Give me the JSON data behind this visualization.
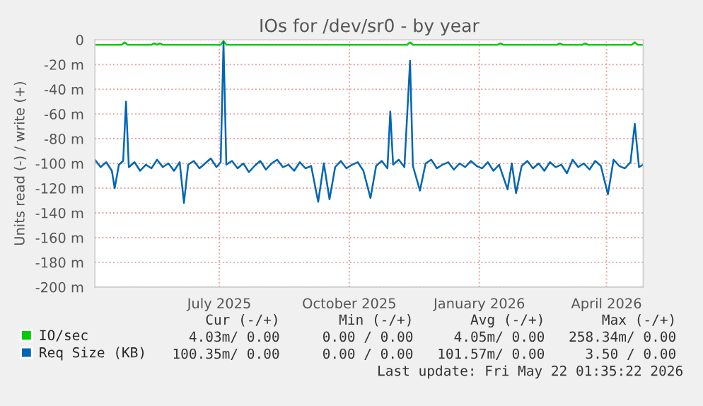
{
  "chart_data": {
    "type": "line",
    "title": "IOs for /dev/sr0 - by year",
    "ylabel": "Units read (-) / write (+)",
    "xlim": [
      "2025-04-04",
      "2026-04-27"
    ],
    "xticks": [
      {
        "value": "2025-07-01",
        "label": "July 2025"
      },
      {
        "value": "2025-10-01",
        "label": "October 2025"
      },
      {
        "value": "2026-01-01",
        "label": "January 2026"
      },
      {
        "value": "2026-04-01",
        "label": "April 2026"
      }
    ],
    "ylim": [
      -200,
      0
    ],
    "yticks": [
      {
        "value": -200,
        "label": "-200 m"
      },
      {
        "value": -180,
        "label": "-180 m"
      },
      {
        "value": -160,
        "label": "-160 m"
      },
      {
        "value": -140,
        "label": "-140 m"
      },
      {
        "value": -120,
        "label": "-120 m"
      },
      {
        "value": -100,
        "label": "-100 m"
      },
      {
        "value": -80,
        "label": "-80 m"
      },
      {
        "value": -60,
        "label": "-60 m"
      },
      {
        "value": -40,
        "label": "-40 m"
      },
      {
        "value": -20,
        "label": "-20 m"
      },
      {
        "value": 0,
        "label": "0"
      }
    ],
    "grid": true,
    "legend": "bottom left",
    "marker": "none",
    "line_style": "solid",
    "series": [
      {
        "name": "IO/sec",
        "color": "#00cc00",
        "x": [
          "2025-04-04",
          "2025-04-23",
          "2025-04-25",
          "2025-04-27",
          "2025-05-14",
          "2025-05-16",
          "2025-05-18",
          "2025-05-20",
          "2025-05-22",
          "2025-07-02",
          "2025-07-04",
          "2025-07-06",
          "2025-11-11",
          "2025-11-13",
          "2025-11-15",
          "2026-01-14",
          "2026-01-16",
          "2026-01-18",
          "2026-02-25",
          "2026-02-27",
          "2026-03-01",
          "2026-03-15",
          "2026-03-17",
          "2026-03-19",
          "2026-04-19",
          "2026-04-21",
          "2026-04-23",
          "2026-04-27"
        ],
        "values": [
          -4,
          -4,
          -2,
          -4,
          -4,
          -3,
          -4,
          -3,
          -4,
          -4,
          -1,
          -4,
          -4,
          -2,
          -4,
          -4,
          -3,
          -4,
          -4,
          -3,
          -4,
          -4,
          -3,
          -4,
          -4,
          -2,
          -4,
          -4
        ]
      },
      {
        "name": "Req Size (KB)",
        "color": "#0066b3",
        "x": [
          "2025-04-04",
          "2025-04-08",
          "2025-04-12",
          "2025-04-16",
          "2025-04-18",
          "2025-04-21",
          "2025-04-24",
          "2025-04-26",
          "2025-04-28",
          "2025-05-02",
          "2025-05-06",
          "2025-05-10",
          "2025-05-14",
          "2025-05-18",
          "2025-05-22",
          "2025-05-26",
          "2025-05-30",
          "2025-06-03",
          "2025-06-06",
          "2025-06-09",
          "2025-06-13",
          "2025-06-17",
          "2025-06-21",
          "2025-06-25",
          "2025-06-29",
          "2025-07-02",
          "2025-07-04",
          "2025-07-06",
          "2025-07-10",
          "2025-07-14",
          "2025-07-18",
          "2025-07-22",
          "2025-07-26",
          "2025-07-30",
          "2025-08-03",
          "2025-08-07",
          "2025-08-11",
          "2025-08-15",
          "2025-08-19",
          "2025-08-23",
          "2025-08-27",
          "2025-08-31",
          "2025-09-04",
          "2025-09-09",
          "2025-09-13",
          "2025-09-17",
          "2025-09-21",
          "2025-09-25",
          "2025-09-29",
          "2025-10-03",
          "2025-10-07",
          "2025-10-11",
          "2025-10-16",
          "2025-10-20",
          "2025-10-24",
          "2025-10-28",
          "2025-10-30",
          "2025-11-01",
          "2025-11-05",
          "2025-11-09",
          "2025-11-13",
          "2025-11-15",
          "2025-11-20",
          "2025-11-24",
          "2025-11-28",
          "2025-12-02",
          "2025-12-06",
          "2025-12-10",
          "2025-12-14",
          "2025-12-18",
          "2025-12-22",
          "2025-12-26",
          "2025-12-30",
          "2026-01-03",
          "2026-01-07",
          "2026-01-11",
          "2026-01-15",
          "2026-01-21",
          "2026-01-24",
          "2026-01-27",
          "2026-01-31",
          "2026-02-04",
          "2026-02-08",
          "2026-02-12",
          "2026-02-16",
          "2026-02-20",
          "2026-02-24",
          "2026-02-28",
          "2026-03-04",
          "2026-03-08",
          "2026-03-12",
          "2026-03-16",
          "2026-03-20",
          "2026-03-24",
          "2026-03-28",
          "2026-04-02",
          "2026-04-06",
          "2026-04-10",
          "2026-04-14",
          "2026-04-18",
          "2026-04-21",
          "2026-04-24",
          "2026-04-27"
        ],
        "values": [
          -97,
          -103,
          -99,
          -106,
          -120,
          -101,
          -98,
          -50,
          -103,
          -99,
          -106,
          -101,
          -104,
          -97,
          -103,
          -100,
          -106,
          -99,
          -132,
          -101,
          -98,
          -104,
          -100,
          -96,
          -103,
          -99,
          -2,
          -101,
          -98,
          -104,
          -100,
          -107,
          -102,
          -98,
          -105,
          -100,
          -97,
          -103,
          -101,
          -106,
          -99,
          -104,
          -102,
          -131,
          -100,
          -129,
          -103,
          -98,
          -104,
          -101,
          -99,
          -106,
          -128,
          -102,
          -98,
          -104,
          -58,
          -101,
          -97,
          -103,
          -17,
          -102,
          -122,
          -100,
          -97,
          -104,
          -101,
          -99,
          -105,
          -100,
          -103,
          -98,
          -102,
          -104,
          -99,
          -106,
          -101,
          -121,
          -100,
          -124,
          -102,
          -98,
          -104,
          -100,
          -106,
          -99,
          -103,
          -101,
          -108,
          -97,
          -103,
          -100,
          -105,
          -98,
          -102,
          -125,
          -97,
          -102,
          -104,
          -99,
          -68,
          -103,
          -101
        ]
      }
    ],
    "annotations": [
      "Cur (-/+)",
      "Min (-/+)",
      "Avg (-/+)",
      "Max (-/+)",
      "4.03m/ 0.00",
      "0.00 / 0.00",
      "4.05m/ 0.00",
      "258.34m/ 0.00",
      "100.35m/ 0.00",
      "0.00 / 0.00",
      "101.57m/ 0.00",
      "3.50 / 0.00",
      "Last update: Fri May 22 01:35:22 2026"
    ]
  }
}
